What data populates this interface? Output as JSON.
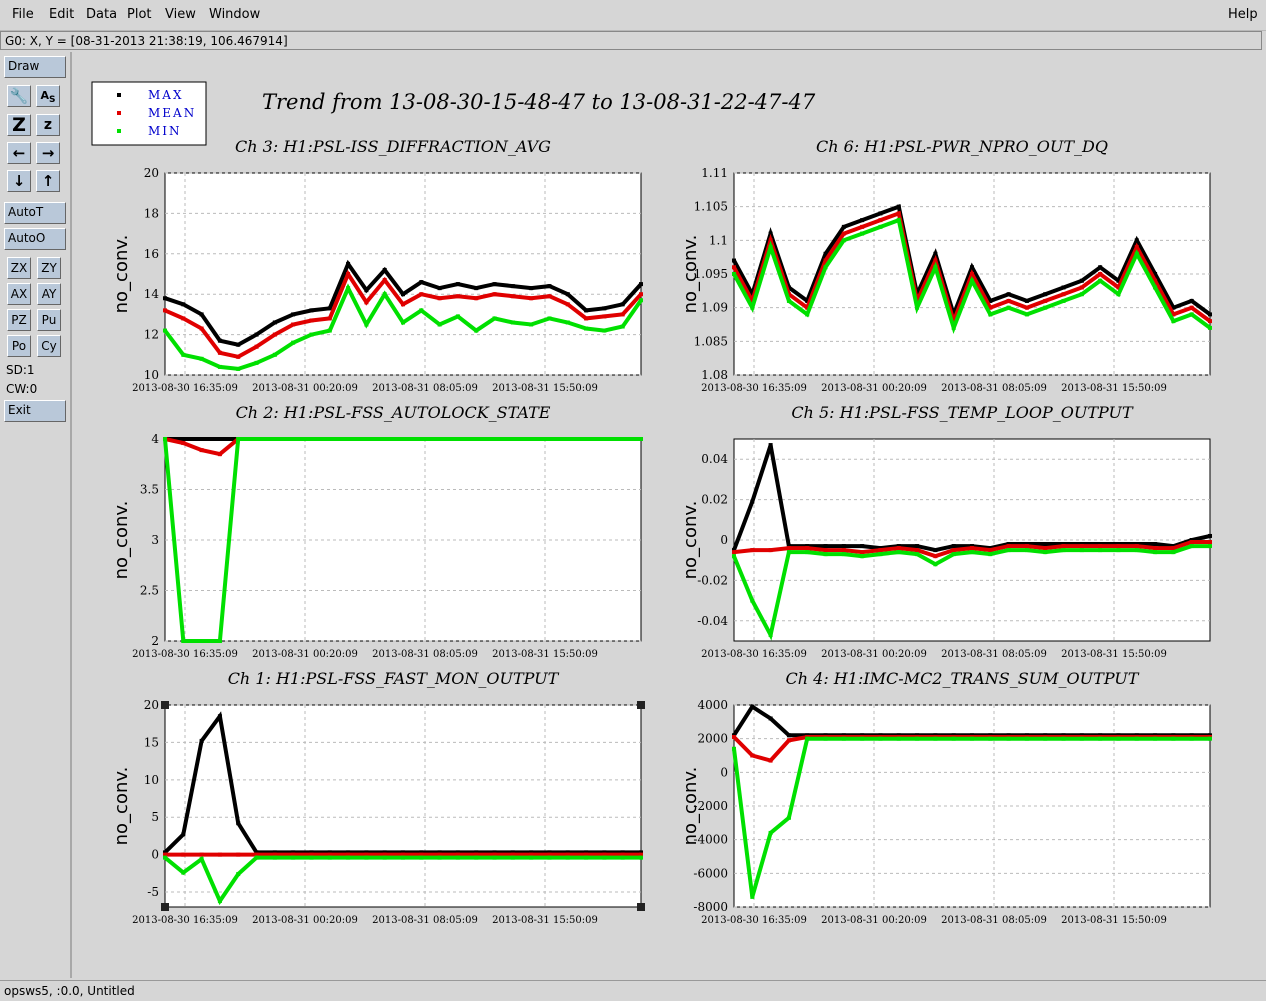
{
  "menu": {
    "items": [
      {
        "label": "File",
        "key": "F"
      },
      {
        "label": "Edit",
        "key": "E"
      },
      {
        "label": "Data",
        "key": "D"
      },
      {
        "label": "Plot",
        "key": "P"
      },
      {
        "label": "View",
        "key": "V"
      },
      {
        "label": "Window",
        "key": "W"
      }
    ],
    "help": "Help"
  },
  "coord_readout": "G0: X, Y = [08-31-2013 21:38:19, 106.467914]",
  "toolbar": {
    "draw": "Draw",
    "icons": [
      "wrench-icon",
      "text-icon",
      "zoom-out-icon",
      "zoom-in-icon",
      "arrow-left-icon",
      "arrow-right-icon",
      "arrow-down-icon",
      "arrow-up-icon"
    ],
    "autot": "AutoT",
    "autoo": "AutoO",
    "small": [
      "ZX",
      "ZY",
      "AX",
      "AY",
      "PZ",
      "Pu",
      "Po",
      "Cy"
    ],
    "sd": "SD:1",
    "cw": "CW:0",
    "exit": "Exit"
  },
  "status_text": "opsws5, :0.0, Untitled",
  "figure": {
    "title": "Trend from 13-08-30-15-48-47 to 13-08-31-22-47-47",
    "legend": [
      {
        "label": "MAX",
        "color": "#000000"
      },
      {
        "label": "MEAN",
        "color": "#e00000"
      },
      {
        "label": "MIN",
        "color": "#00e000"
      }
    ],
    "legend_text_color": "#0000cc",
    "xticks": [
      "2013-08-30 16:35:09",
      "2013-08-31 00:20:09",
      "2013-08-31 08:05:09",
      "2013-08-31 15:50:09"
    ],
    "ylabel": "no_conv."
  },
  "chart_data": [
    {
      "type": "scatter",
      "title": "Ch 3: H1:PSL-ISS_DIFFRACTION_AVG",
      "ylim": [
        10,
        20
      ],
      "yticks": [
        "10",
        "12",
        "14",
        "16",
        "18",
        "20"
      ],
      "series": [
        {
          "name": "MAX",
          "values": [
            13.8,
            13.5,
            13.0,
            11.7,
            11.5,
            12.0,
            12.6,
            13.0,
            13.2,
            13.3,
            15.5,
            14.2,
            15.2,
            14.0,
            14.6,
            14.3,
            14.5,
            14.3,
            14.5,
            14.4,
            14.3,
            14.4,
            14.0,
            13.2,
            13.3,
            13.5,
            14.5
          ]
        },
        {
          "name": "MEAN",
          "values": [
            13.2,
            12.8,
            12.3,
            11.1,
            10.9,
            11.4,
            12.0,
            12.5,
            12.7,
            12.8,
            15.0,
            13.6,
            14.7,
            13.5,
            14.0,
            13.8,
            13.9,
            13.8,
            14.0,
            13.9,
            13.8,
            13.9,
            13.5,
            12.8,
            12.9,
            13.0,
            14.0
          ]
        },
        {
          "name": "MIN",
          "values": [
            12.2,
            11.0,
            10.8,
            10.4,
            10.3,
            10.6,
            11.0,
            11.6,
            12.0,
            12.2,
            14.3,
            12.5,
            14.0,
            12.6,
            13.2,
            12.5,
            12.9,
            12.2,
            12.8,
            12.6,
            12.5,
            12.8,
            12.6,
            12.3,
            12.2,
            12.4,
            13.7
          ]
        }
      ]
    },
    {
      "type": "scatter",
      "title": "Ch 6: H1:PSL-PWR_NPRO_OUT_DQ",
      "ylim": [
        1.08,
        1.11
      ],
      "yticks": [
        "1.08",
        "1.085",
        "1.09",
        "1.095",
        "1.1",
        "1.105",
        "1.11"
      ],
      "series": [
        {
          "name": "MAX",
          "values": [
            1.097,
            1.092,
            1.101,
            1.093,
            1.091,
            1.098,
            1.102,
            1.103,
            1.104,
            1.105,
            1.092,
            1.098,
            1.089,
            1.096,
            1.091,
            1.092,
            1.091,
            1.092,
            1.093,
            1.094,
            1.096,
            1.094,
            1.1,
            1.095,
            1.09,
            1.091,
            1.089
          ]
        },
        {
          "name": "MEAN",
          "values": [
            1.096,
            1.091,
            1.1,
            1.092,
            1.09,
            1.097,
            1.101,
            1.102,
            1.103,
            1.104,
            1.091,
            1.097,
            1.088,
            1.095,
            1.09,
            1.091,
            1.09,
            1.091,
            1.092,
            1.093,
            1.095,
            1.093,
            1.099,
            1.094,
            1.089,
            1.09,
            1.088
          ]
        },
        {
          "name": "MIN",
          "values": [
            1.095,
            1.09,
            1.099,
            1.091,
            1.089,
            1.096,
            1.1,
            1.101,
            1.102,
            1.103,
            1.09,
            1.096,
            1.087,
            1.094,
            1.089,
            1.09,
            1.089,
            1.09,
            1.091,
            1.092,
            1.094,
            1.092,
            1.098,
            1.093,
            1.088,
            1.089,
            1.087
          ]
        }
      ]
    },
    {
      "type": "scatter",
      "title": "Ch 2: H1:PSL-FSS_AUTOLOCK_STATE",
      "ylim": [
        2,
        4
      ],
      "yticks": [
        "2",
        "2.5",
        "3",
        "3.5",
        "4"
      ],
      "series": [
        {
          "name": "MAX",
          "values": [
            4,
            4,
            4,
            4,
            4,
            4,
            4,
            4,
            4,
            4,
            4,
            4,
            4,
            4,
            4,
            4,
            4,
            4,
            4,
            4,
            4,
            4,
            4,
            4,
            4,
            4,
            4
          ]
        },
        {
          "name": "MEAN",
          "values": [
            4,
            3.96,
            3.89,
            3.85,
            4,
            4,
            4,
            4,
            4,
            4,
            4,
            4,
            4,
            4,
            4,
            4,
            4,
            4,
            4,
            4,
            4,
            4,
            4,
            4,
            4,
            4,
            4
          ]
        },
        {
          "name": "MIN",
          "values": [
            4,
            2,
            2,
            2,
            4,
            4,
            4,
            4,
            4,
            4,
            4,
            4,
            4,
            4,
            4,
            4,
            4,
            4,
            4,
            4,
            4,
            4,
            4,
            4,
            4,
            4,
            4
          ]
        }
      ]
    },
    {
      "type": "scatter",
      "title": "Ch 5: H1:PSL-FSS_TEMP_LOOP_OUTPUT",
      "ylim": [
        -0.05,
        0.05
      ],
      "yticks": [
        "-0.04",
        "-0.02",
        "0",
        "0.02",
        "0.04"
      ],
      "series": [
        {
          "name": "MAX",
          "values": [
            -0.005,
            0.019,
            0.047,
            -0.003,
            -0.003,
            -0.003,
            -0.003,
            -0.003,
            -0.004,
            -0.003,
            -0.003,
            -0.005,
            -0.003,
            -0.003,
            -0.004,
            -0.002,
            -0.002,
            -0.002,
            -0.002,
            -0.002,
            -0.002,
            -0.002,
            -0.002,
            -0.002,
            -0.003,
            0.0,
            0.002
          ]
        },
        {
          "name": "MEAN",
          "values": [
            -0.006,
            -0.005,
            -0.005,
            -0.004,
            -0.004,
            -0.005,
            -0.005,
            -0.006,
            -0.005,
            -0.004,
            -0.005,
            -0.008,
            -0.005,
            -0.004,
            -0.005,
            -0.003,
            -0.003,
            -0.004,
            -0.003,
            -0.003,
            -0.003,
            -0.003,
            -0.003,
            -0.004,
            -0.004,
            -0.001,
            -0.001
          ]
        },
        {
          "name": "MIN",
          "values": [
            -0.008,
            -0.03,
            -0.047,
            -0.006,
            -0.006,
            -0.007,
            -0.007,
            -0.008,
            -0.007,
            -0.006,
            -0.007,
            -0.012,
            -0.007,
            -0.006,
            -0.007,
            -0.005,
            -0.005,
            -0.006,
            -0.005,
            -0.005,
            -0.005,
            -0.005,
            -0.005,
            -0.006,
            -0.006,
            -0.003,
            -0.003
          ]
        }
      ]
    },
    {
      "type": "scatter",
      "title": "Ch 1: H1:PSL-FSS_FAST_MON_OUTPUT",
      "ylim": [
        -7,
        20
      ],
      "yticks": [
        "-5",
        "0",
        "5",
        "10",
        "15",
        "20"
      ],
      "series": [
        {
          "name": "MAX",
          "values": [
            0.3,
            2.7,
            15.2,
            18.5,
            4.2,
            0.3,
            0.3,
            0.3,
            0.3,
            0.3,
            0.3,
            0.3,
            0.3,
            0.3,
            0.3,
            0.3,
            0.3,
            0.3,
            0.3,
            0.3,
            0.3,
            0.3,
            0.3,
            0.3,
            0.3,
            0.3,
            0.3
          ]
        },
        {
          "name": "MEAN",
          "values": [
            0.0,
            0.0,
            0.0,
            0.0,
            0.0,
            0.0,
            0.0,
            0.0,
            0.0,
            0.0,
            0.0,
            0.0,
            0.0,
            0.0,
            0.0,
            0.0,
            0.0,
            0.0,
            0.0,
            0.0,
            0.0,
            0.0,
            0.0,
            0.0,
            0.0,
            0.0,
            0.0
          ]
        },
        {
          "name": "MIN",
          "values": [
            -0.4,
            -2.4,
            -0.6,
            -6.2,
            -2.6,
            -0.4,
            -0.4,
            -0.4,
            -0.4,
            -0.4,
            -0.4,
            -0.4,
            -0.4,
            -0.4,
            -0.4,
            -0.4,
            -0.4,
            -0.4,
            -0.4,
            -0.4,
            -0.4,
            -0.4,
            -0.4,
            -0.4,
            -0.4,
            -0.4,
            -0.4
          ]
        }
      ]
    },
    {
      "type": "scatter",
      "title": "Ch 4: H1:IMC-MC2_TRANS_SUM_OUTPUT",
      "ylim": [
        -8000,
        4000
      ],
      "yticks": [
        "-8000",
        "-6000",
        "-4000",
        "-2000",
        "0",
        "2000",
        "4000"
      ],
      "series": [
        {
          "name": "MAX",
          "values": [
            2200,
            3900,
            3200,
            2200,
            2200,
            2200,
            2200,
            2200,
            2200,
            2200,
            2200,
            2200,
            2200,
            2200,
            2200,
            2200,
            2200,
            2200,
            2200,
            2200,
            2200,
            2200,
            2200,
            2200,
            2200,
            2200,
            2200
          ]
        },
        {
          "name": "MEAN",
          "values": [
            2100,
            1000,
            700,
            1900,
            2100,
            2100,
            2100,
            2100,
            2100,
            2100,
            2100,
            2100,
            2100,
            2100,
            2100,
            2100,
            2100,
            2100,
            2100,
            2100,
            2100,
            2100,
            2100,
            2100,
            2100,
            2100,
            2100
          ]
        },
        {
          "name": "MIN",
          "values": [
            1400,
            -7400,
            -3600,
            -2700,
            2000,
            2000,
            2000,
            2000,
            2000,
            2000,
            2000,
            2000,
            2000,
            2000,
            2000,
            2000,
            2000,
            2000,
            2000,
            2000,
            2000,
            2000,
            2000,
            2000,
            2000,
            2000,
            2000
          ]
        }
      ]
    }
  ]
}
